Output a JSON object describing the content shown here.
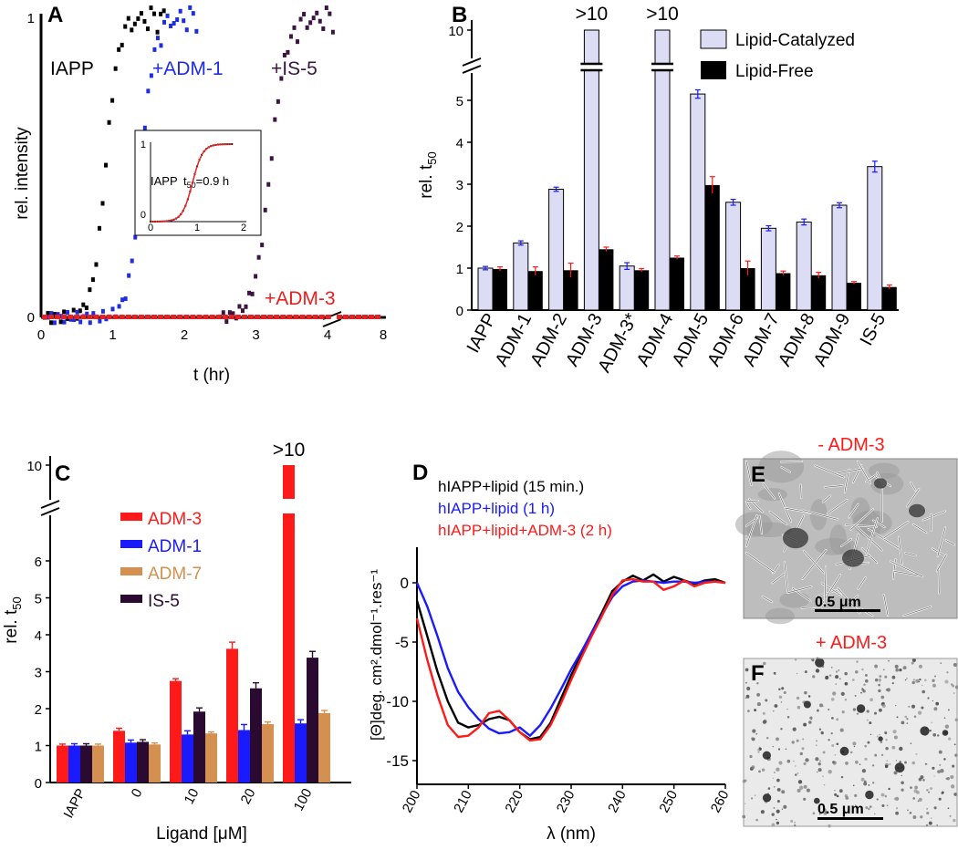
{
  "chart_data": [
    {
      "panel": "A",
      "type": "scatter",
      "xlabel": "t (hr)",
      "ylabel": "rel. intensity",
      "x_ticks": [
        "0",
        "1",
        "2",
        "3",
        "4",
        "8"
      ],
      "y_ticks": [
        "0",
        "1"
      ],
      "x_axis_break": "between 4 and 8",
      "series": [
        {
          "name": "IAPP",
          "color": "#000000",
          "t50": 0.9
        },
        {
          "name": "+ADM-1",
          "color": "#1f2de0",
          "t50": 1.4
        },
        {
          "name": "+IS-5",
          "color": "#3a1540",
          "t50": 3.2
        },
        {
          "name": "+ADM-3",
          "color": "#e8201f",
          "t50": null,
          "note": "flat near 0"
        }
      ],
      "inset": {
        "label": "IAPP",
        "t50_label": "t",
        "t50_sub": "50",
        "t50_value": "=0.9 h",
        "x_ticks": [
          "0",
          "1",
          "2"
        ],
        "y_ticks": [
          "0",
          "1"
        ]
      }
    },
    {
      "panel": "B",
      "type": "bar",
      "ylabel_main": "rel. t",
      "ylabel_sub": "50",
      "y_ticks": [
        "0",
        "1",
        "2",
        "3",
        "4",
        "5",
        "10"
      ],
      "y_axis_break": "between 5 and 10",
      "legend": [
        "Lipid-Catalyzed",
        "Lipid-Free"
      ],
      "legend_colors": [
        "#dcdcf5",
        "#000000"
      ],
      "categories": [
        "IAPP",
        "ADM-1",
        "ADM-2",
        "ADM-3",
        "ADM-3*",
        "ADM-4",
        "ADM-5",
        "ADM-6",
        "ADM-7",
        "ADM-8",
        "ADM-9",
        "IS-5"
      ],
      "series": [
        {
          "name": "Lipid-Catalyzed",
          "values": [
            1.0,
            1.6,
            2.88,
            10,
            1.05,
            10,
            5.15,
            2.57,
            1.95,
            2.1,
            2.5,
            3.42
          ],
          "errors": [
            0.04,
            0.05,
            0.05,
            0,
            0.08,
            0,
            0.1,
            0.07,
            0.06,
            0.07,
            0.06,
            0.13
          ]
        },
        {
          "name": "Lipid-Free",
          "values": [
            0.98,
            0.93,
            0.95,
            1.45,
            0.95,
            1.25,
            2.98,
            1.0,
            0.88,
            0.83,
            0.65,
            0.55
          ],
          "errors": [
            0.05,
            0.1,
            0.17,
            0.05,
            0.04,
            0.04,
            0.2,
            0.17,
            0.05,
            0.07,
            0.03,
            0.05
          ]
        }
      ],
      "annotations": [
        ">10",
        ">10"
      ]
    },
    {
      "panel": "C",
      "type": "bar",
      "xlabel": "Ligand [μM]",
      "ylabel_main": "rel. t",
      "ylabel_sub": "50",
      "y_ticks": [
        "0",
        "1",
        "2",
        "3",
        "4",
        "5",
        "6",
        "10"
      ],
      "y_axis_break": "between 6 and 10",
      "categories": [
        "IAPP",
        "0",
        "10",
        "20",
        "100"
      ],
      "legend": [
        "ADM-3",
        "ADM-1",
        "ADM-7",
        "IS-5"
      ],
      "series": [
        {
          "name": "ADM-3",
          "color": "#ff1a1a",
          "values": [
            1.0,
            1.4,
            2.75,
            3.62,
            10
          ],
          "errors": [
            0.04,
            0.07,
            0.06,
            0.18,
            0
          ]
        },
        {
          "name": "ADM-1",
          "color": "#1a1aff",
          "values": [
            1.0,
            1.08,
            1.3,
            1.42,
            1.6
          ],
          "errors": [
            0.05,
            0.07,
            0.1,
            0.15,
            0.1
          ]
        },
        {
          "name": "IS-5",
          "color": "#2a0a30",
          "values": [
            1.0,
            1.1,
            1.92,
            2.55,
            3.38
          ],
          "errors": [
            0.05,
            0.06,
            0.1,
            0.15,
            0.17
          ]
        },
        {
          "name": "ADM-7",
          "color": "#d39050",
          "values": [
            1.0,
            1.03,
            1.33,
            1.58,
            1.88
          ],
          "errors": [
            0.04,
            0.04,
            0.04,
            0.06,
            0.07
          ]
        }
      ],
      "annotations": [
        ">10"
      ]
    },
    {
      "panel": "D",
      "type": "line",
      "xlabel": "λ (nm)",
      "ylabel": "[Θ]deg. cm².dmol⁻¹.res⁻¹",
      "x_ticks": [
        "200",
        "210",
        "220",
        "230",
        "240",
        "250",
        "260"
      ],
      "y_ticks": [
        "0",
        "-5",
        "-10",
        "-15"
      ],
      "xlim": [
        200,
        260
      ],
      "ylim": [
        -17,
        3
      ],
      "series": [
        {
          "name": "hIAPP+lipid (15 min.)",
          "color": "#000000",
          "x": [
            200,
            202,
            204,
            206,
            208,
            210,
            212,
            214,
            216,
            218,
            220,
            222,
            224,
            226,
            228,
            230,
            232,
            234,
            236,
            238,
            240,
            242,
            244,
            246,
            248,
            250,
            252,
            254,
            256,
            258,
            260
          ],
          "y": [
            -1.5,
            -4.5,
            -7.5,
            -10,
            -11.8,
            -12.2,
            -12,
            -11.5,
            -11.3,
            -11.6,
            -12.6,
            -13.2,
            -13,
            -11.8,
            -9.8,
            -7.8,
            -6,
            -4.2,
            -2.5,
            -0.7,
            0.1,
            0.6,
            0.2,
            0.7,
            0.1,
            0.5,
            0.2,
            -0.1,
            0.2,
            0.3,
            0
          ]
        },
        {
          "name": "hIAPP+lipid (1 h)",
          "color": "#1a1aff",
          "x": [
            200,
            202,
            204,
            206,
            208,
            210,
            212,
            214,
            216,
            218,
            220,
            222,
            224,
            226,
            228,
            230,
            232,
            234,
            236,
            238,
            240,
            242,
            244,
            246,
            248,
            250,
            252,
            254,
            256,
            258,
            260
          ],
          "y": [
            0,
            -2,
            -4.5,
            -7.2,
            -9.2,
            -10.5,
            -11.5,
            -12.3,
            -12.7,
            -12.6,
            -12.2,
            -12.9,
            -12,
            -10.6,
            -9,
            -7.3,
            -5.8,
            -4.2,
            -2.7,
            -1.2,
            -0.3,
            0.1,
            0.2,
            0.1,
            0,
            0.1,
            0.1,
            0,
            0.1,
            0.1,
            0
          ]
        },
        {
          "name": "hIAPP+lipid+ADM-3 (2 h)",
          "color": "#ff1a1a",
          "x": [
            200,
            202,
            204,
            206,
            208,
            210,
            212,
            214,
            216,
            218,
            220,
            222,
            224,
            226,
            228,
            230,
            232,
            234,
            236,
            238,
            240,
            242,
            244,
            246,
            248,
            250,
            252,
            254,
            256,
            258,
            260
          ],
          "y": [
            -3,
            -6.5,
            -9.5,
            -12,
            -13,
            -12.9,
            -12.2,
            -11,
            -10.8,
            -11.6,
            -12.6,
            -13.3,
            -13.2,
            -12,
            -10.2,
            -8.2,
            -6.3,
            -4.5,
            -2.8,
            -1,
            0.2,
            0.3,
            0.1,
            0.1,
            -0.6,
            -0.3,
            0.2,
            -0.3,
            0,
            0.1,
            0
          ]
        }
      ]
    }
  ],
  "panels": {
    "A": "A",
    "B": "B",
    "C": "C",
    "D": "D",
    "E": "E",
    "F": "F"
  },
  "micrographs": {
    "E": {
      "title": "- ADM-3",
      "scale": "0.5 μm"
    },
    "F": {
      "title": "+ ADM-3",
      "scale": "0.5 μm"
    }
  }
}
